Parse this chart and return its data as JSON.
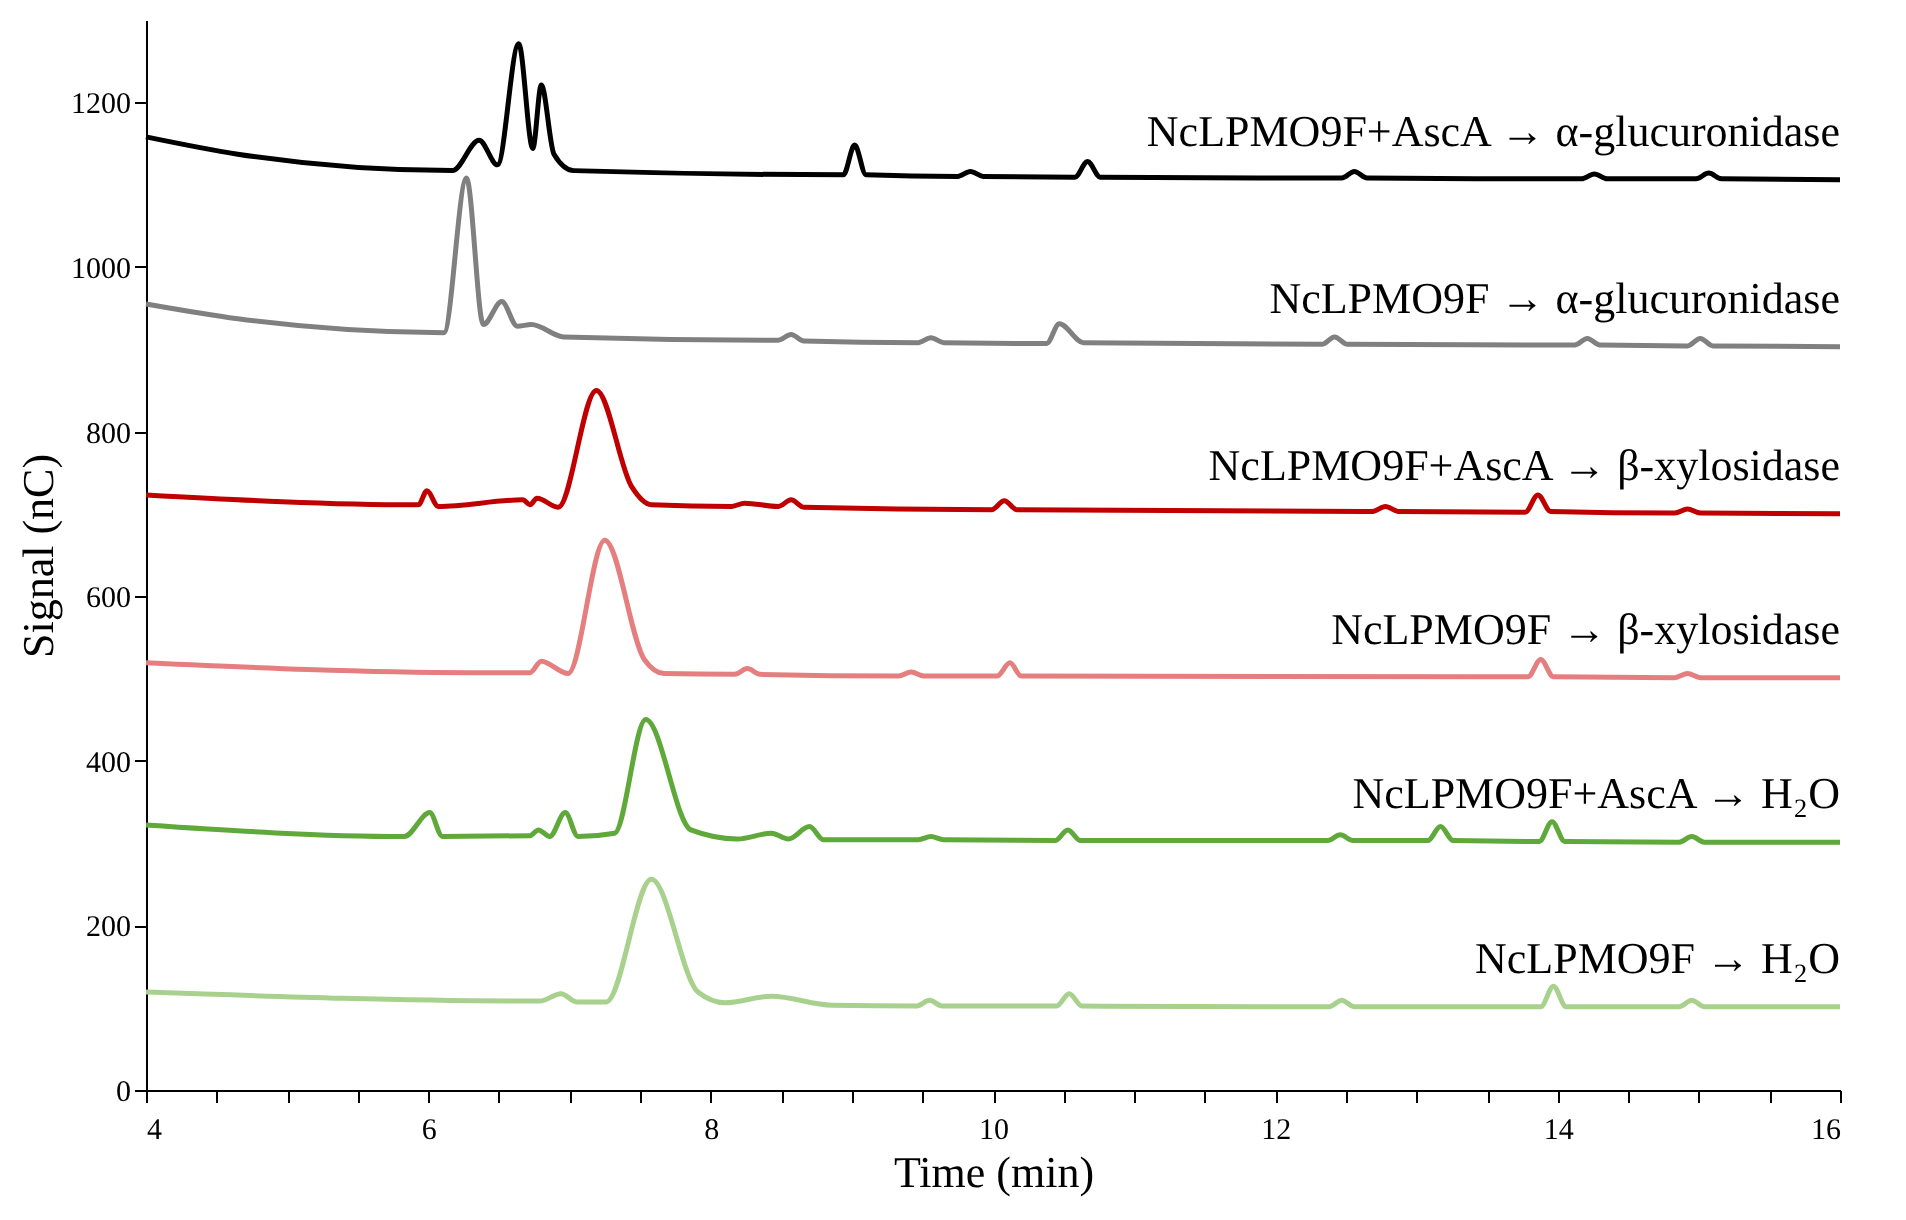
{
  "chart_data": {
    "type": "line",
    "xlabel": "Time (min)",
    "ylabel": "Signal (nC)",
    "xlim": [
      4,
      16
    ],
    "ylim": [
      0,
      1300
    ],
    "xticks": [
      4,
      {
        "value": 4.5,
        "label": null
      },
      {
        "value": 5,
        "label": null
      },
      {
        "value": 5.5,
        "label": null
      },
      6,
      {
        "value": 6.5,
        "label": null
      },
      {
        "value": 7,
        "label": null
      },
      {
        "value": 7.5,
        "label": null
      },
      8,
      {
        "value": 8.5,
        "label": null
      },
      {
        "value": 9,
        "label": null
      },
      {
        "value": 9.5,
        "label": null
      },
      10,
      {
        "value": 10.5,
        "label": null
      },
      {
        "value": 11,
        "label": null
      },
      {
        "value": 11.5,
        "label": null
      },
      12,
      {
        "value": 12.5,
        "label": null
      },
      {
        "value": 13,
        "label": null
      },
      {
        "value": 13.5,
        "label": null
      },
      14,
      {
        "value": 14.5,
        "label": null
      },
      {
        "value": 15,
        "label": null
      },
      {
        "value": 15.5,
        "label": null
      },
      16
    ],
    "yticks": [
      0,
      200,
      400,
      600,
      800,
      1000,
      1200
    ],
    "grid": false,
    "legend": false,
    "marker": "none",
    "line_style": "solid",
    "series": [
      {
        "name": "NcLPMO9F+AscA → α-glucuronidase",
        "color": "#000000",
        "x": [
          4,
          4.65,
          6.17,
          6.36,
          6.49,
          6.64,
          6.74,
          6.8,
          6.89,
          7.03,
          8.94,
          9.02,
          9.1,
          9.75,
          9.84,
          9.93,
          10.58,
          10.67,
          10.76,
          12.47,
          12.56,
          12.65,
          14.17,
          14.26,
          14.35,
          14.98,
          15.07,
          15.16,
          16
        ],
        "values": [
          1158,
          1137,
          1117,
          1154,
          1124,
          1271,
          1144,
          1221,
          1137,
          1117,
          1112,
          1148,
          1112,
          1110,
          1116,
          1110,
          1109,
          1128,
          1109,
          1108,
          1116,
          1108,
          1107,
          1113,
          1107,
          1107,
          1114,
          1107,
          1106
        ]
      },
      {
        "name": "NcLPMO9F → α-glucuronidase",
        "color": "#808080",
        "x": [
          4,
          4.65,
          6.11,
          6.27,
          6.39,
          6.52,
          6.63,
          6.73,
          6.96,
          8.48,
          8.57,
          8.66,
          9.47,
          9.56,
          9.65,
          10.38,
          10.47,
          10.64,
          12.33,
          12.42,
          12.51,
          14.12,
          14.21,
          14.3,
          14.92,
          15.01,
          15.1,
          16
        ],
        "values": [
          955,
          937,
          920,
          1108,
          930,
          958,
          928,
          930,
          915,
          911,
          918,
          910,
          908,
          914,
          908,
          907,
          931,
          908,
          906,
          915,
          906,
          905,
          913,
          905,
          904,
          913,
          904,
          903
        ]
      },
      {
        "name": "NcLPMO9F+AscA → β-xylosidase",
        "color": "#c00000",
        "x": [
          4,
          5.93,
          5.99,
          6.07,
          6.67,
          6.72,
          6.77,
          6.92,
          7.19,
          7.44,
          7.58,
          8.15,
          8.24,
          8.48,
          8.57,
          8.66,
          9.99,
          10.08,
          10.17,
          12.69,
          12.78,
          12.87,
          13.77,
          13.86,
          13.95,
          14.83,
          14.92,
          15.01,
          16
        ],
        "values": [
          723,
          711,
          728,
          709,
          717,
          711,
          719,
          708,
          850,
          733,
          711,
          709,
          713,
          709,
          717,
          708,
          705,
          716,
          705,
          703,
          709,
          703,
          702,
          723,
          703,
          701,
          706,
          701,
          700
        ]
      },
      {
        "name": "NcLPMO9F → β-xylosidase",
        "color": "#e57f7f",
        "x": [
          4,
          6.3,
          6.72,
          6.8,
          6.99,
          7.25,
          7.53,
          7.67,
          8.17,
          8.26,
          8.35,
          9.33,
          9.42,
          9.51,
          10.03,
          10.12,
          10.2,
          13.79,
          13.88,
          13.97,
          14.83,
          14.92,
          15.01,
          16
        ],
        "values": [
          519,
          507,
          507,
          521,
          506,
          668,
          523,
          506,
          505,
          512,
          505,
          503,
          508,
          503,
          503,
          519,
          503,
          502,
          523,
          502,
          501,
          506,
          501,
          501
        ]
      },
      {
        "name": "NcLPMO9F+AscA → H₂O",
        "color": "#5fa83a",
        "x": [
          4,
          5.83,
          6.01,
          6.1,
          6.72,
          6.78,
          6.86,
          6.97,
          7.06,
          7.32,
          7.54,
          7.86,
          8.19,
          8.43,
          8.55,
          8.7,
          8.8,
          9.47,
          9.56,
          9.65,
          10.44,
          10.53,
          10.62,
          12.37,
          12.46,
          12.55,
          13.08,
          13.17,
          13.26,
          13.87,
          13.96,
          14.05,
          14.86,
          14.95,
          15.04,
          16
        ],
        "values": [
          322,
          308,
          337,
          308,
          309,
          316,
          308,
          337,
          308,
          312,
          450,
          316,
          305,
          312,
          305,
          320,
          304,
          304,
          308,
          304,
          303,
          316,
          303,
          303,
          310,
          303,
          303,
          320,
          303,
          302,
          326,
          302,
          301,
          308,
          301,
          301
        ]
      },
      {
        "name": "NcLPMO9F → H₂O",
        "color": "#a9d18e",
        "x": [
          4,
          6.79,
          6.94,
          7.05,
          7.26,
          7.58,
          7.91,
          8.1,
          8.43,
          8.86,
          9.46,
          9.55,
          9.64,
          10.45,
          10.54,
          10.63,
          12.38,
          12.47,
          12.56,
          13.88,
          13.97,
          14.06,
          14.86,
          14.95,
          15.04,
          16
        ],
        "values": [
          119,
          108,
          117,
          107,
          107,
          256,
          119,
          106,
          114,
          103,
          102,
          109,
          102,
          102,
          117,
          102,
          101,
          109,
          101,
          101,
          126,
          101,
          101,
          109,
          101,
          101
        ]
      }
    ]
  }
}
